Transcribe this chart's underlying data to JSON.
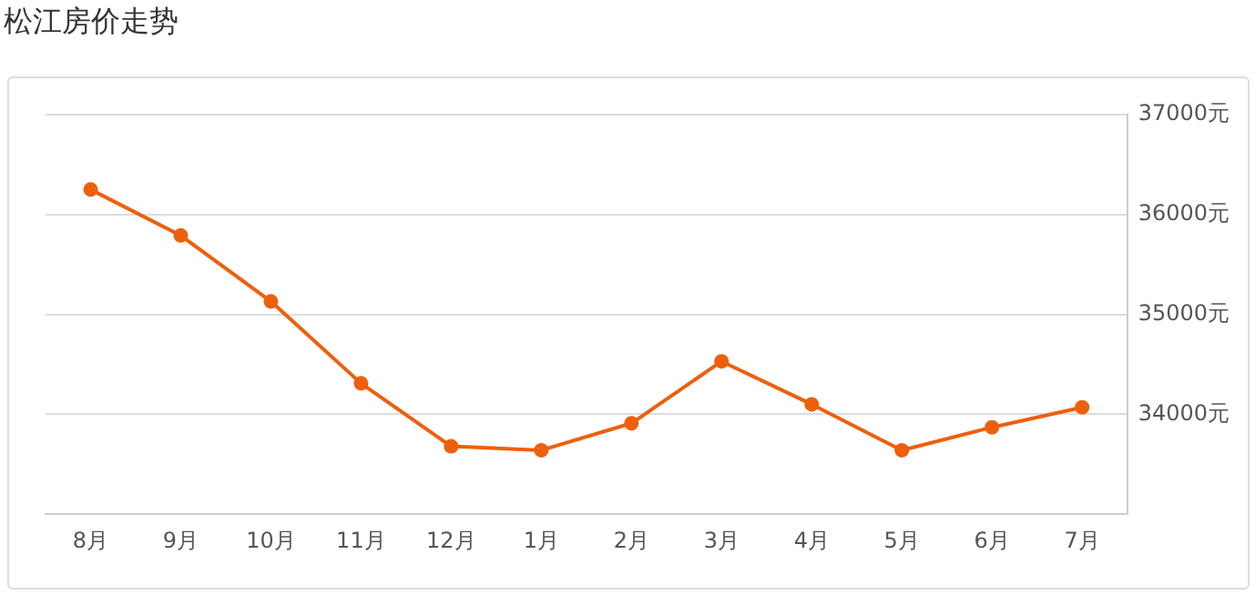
{
  "chart_data": {
    "type": "line",
    "title": "松江房价走势",
    "categories": [
      "8月",
      "9月",
      "10月",
      "11月",
      "12月",
      "1月",
      "2月",
      "3月",
      "4月",
      "5月",
      "6月",
      "7月"
    ],
    "series": [
      {
        "color": "#ee5f0c",
        "values": [
          36250,
          35790,
          35130,
          34310,
          33680,
          33640,
          33910,
          34530,
          34100,
          33640,
          33870,
          34070
        ]
      }
    ],
    "ylim": [
      33000,
      37000
    ],
    "yticks": [
      {
        "value": 34000,
        "label": "34000元"
      },
      {
        "value": 35000,
        "label": "35000元"
      },
      {
        "value": 36000,
        "label": "36000元"
      },
      {
        "value": 37000,
        "label": "37000元"
      }
    ],
    "grid": "y",
    "legend": false,
    "marker": "circle",
    "line_style": "solid"
  }
}
